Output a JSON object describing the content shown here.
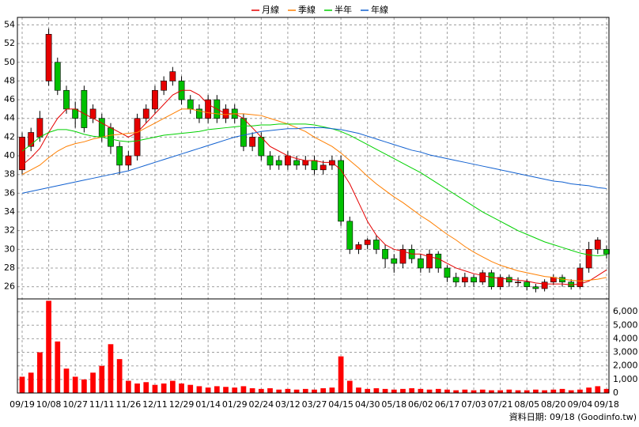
{
  "chart_data": [
    {
      "type": "candlestick",
      "categories": [
        "09/19",
        null,
        null,
        "10/08",
        null,
        null,
        "10/27",
        null,
        null,
        "11/11",
        null,
        null,
        "11/26",
        null,
        null,
        "12/11",
        null,
        null,
        "12/29",
        null,
        null,
        "01/14",
        null,
        null,
        "01/29",
        null,
        null,
        "02/24",
        null,
        null,
        "03/12",
        null,
        null,
        "03/27",
        null,
        null,
        "04/15",
        null,
        null,
        "04/30",
        null,
        null,
        "05/18",
        null,
        null,
        "06/02",
        null,
        null,
        "06/17",
        null,
        null,
        "07/03",
        null,
        null,
        "07/21",
        null,
        null,
        "08/05",
        null,
        null,
        "08/20",
        null,
        null,
        "09/04",
        null,
        null,
        "09/18"
      ],
      "open": [
        38.5,
        41,
        42,
        48,
        50,
        47,
        45,
        47,
        44,
        44,
        43,
        41,
        39,
        40,
        44,
        45,
        47,
        48,
        48,
        46,
        45,
        44,
        46,
        44,
        45,
        44,
        41,
        42,
        40,
        39.5,
        39,
        39.5,
        39,
        39.5,
        38.5,
        39,
        39.5,
        33,
        30,
        30.5,
        31,
        30,
        29,
        28.5,
        30,
        29,
        28,
        29.5,
        28,
        27,
        26.5,
        27,
        26.5,
        27.5,
        26,
        27,
        26.5,
        26.5,
        26,
        25.8,
        26.5,
        27,
        26.5,
        26,
        28,
        30,
        30
      ],
      "high": [
        42.5,
        43,
        44.8,
        53.6,
        50.5,
        47.5,
        45.8,
        47.5,
        45.5,
        44.5,
        43.5,
        41.5,
        40.5,
        44.5,
        45.5,
        47.5,
        48.5,
        49.5,
        48.5,
        46.5,
        45.5,
        46.5,
        46.5,
        45.5,
        45.5,
        44.5,
        42.5,
        42.5,
        40.5,
        40,
        40.5,
        40,
        40,
        40,
        39.5,
        40,
        40,
        33.5,
        30.8,
        31.2,
        31.5,
        30.5,
        29.5,
        30.5,
        30.5,
        29.5,
        30,
        29.8,
        28.3,
        27.5,
        27.5,
        27.3,
        27.8,
        27.8,
        27.3,
        27.3,
        27,
        26.8,
        26.3,
        26.8,
        27.3,
        27.3,
        26.8,
        28.5,
        30.8,
        31.3,
        30.4
      ],
      "low": [
        38,
        40.5,
        41.5,
        47.5,
        46.5,
        44.5,
        43,
        42.5,
        43.5,
        41.5,
        40.2,
        38,
        38.5,
        39.5,
        43.5,
        44.5,
        46.5,
        47.5,
        45.5,
        44.5,
        43.5,
        43.5,
        43.5,
        43.5,
        43.5,
        40.5,
        40.5,
        39.5,
        38.5,
        38.5,
        38.5,
        38.5,
        38.5,
        38,
        38,
        38.5,
        32.5,
        29.5,
        29.5,
        30,
        29.5,
        28,
        27.5,
        28,
        28.5,
        27.5,
        27.5,
        27.5,
        26.5,
        26,
        26,
        26,
        26.2,
        25.7,
        25.7,
        26,
        26,
        25.6,
        25.4,
        25.5,
        26.2,
        26,
        25.7,
        25.8,
        27.5,
        29.5,
        29
      ],
      "close": [
        42,
        42.5,
        44,
        53,
        47,
        45,
        44,
        43,
        45,
        42,
        41,
        39,
        40,
        44,
        45,
        47,
        48,
        49,
        46,
        45,
        44,
        46,
        44,
        45,
        44,
        41,
        42,
        40,
        39,
        39,
        40,
        39,
        39.5,
        38.5,
        39,
        39.5,
        33,
        30,
        30.5,
        31,
        30,
        29,
        28.5,
        30,
        29,
        28,
        29.5,
        28,
        27,
        26.5,
        27,
        26.5,
        27.5,
        26,
        27,
        26.5,
        26.5,
        26,
        25.8,
        26.5,
        27,
        26.5,
        26,
        28,
        30,
        31,
        29.5
      ],
      "up_color": "#e60000",
      "down_color": "#00c000",
      "series": [
        {
          "name": "月線",
          "color": "#e60000",
          "values": [
            39,
            39.8,
            40.8,
            42.5,
            44,
            45,
            45,
            44.5,
            44,
            43.5,
            43,
            42.5,
            42,
            42.5,
            43.5,
            44.5,
            45.5,
            46.5,
            47,
            47,
            46.5,
            45.5,
            45,
            44.5,
            44.5,
            44,
            43,
            42,
            41,
            40.5,
            40,
            39.7,
            39.5,
            39.5,
            39.3,
            39.3,
            38.5,
            37,
            35,
            33,
            31.5,
            30.5,
            30,
            29.8,
            29.5,
            29.5,
            29.2,
            29,
            28.5,
            28,
            27.7,
            27.4,
            27.2,
            27,
            26.9,
            26.8,
            26.7,
            26.6,
            26.4,
            26.3,
            26.3,
            26.3,
            26.2,
            26.3,
            26.6,
            27.2,
            27.8
          ]
        },
        {
          "name": "季線",
          "color": "#ff7f00",
          "values": [
            38,
            38.5,
            39,
            39.8,
            40.5,
            41,
            41.3,
            41.5,
            41.8,
            42,
            42.2,
            42.3,
            42.4,
            42.5,
            43,
            43.5,
            44,
            44.5,
            45,
            45,
            44.8,
            44.6,
            44.5,
            44.4,
            44.5,
            44.5,
            44.4,
            44.3,
            44,
            43.7,
            43.4,
            43,
            42.6,
            42,
            41.5,
            41,
            40.3,
            39.5,
            38.7,
            37.8,
            37,
            36.3,
            35.6,
            35,
            34.3,
            33.6,
            33,
            32.3,
            31.6,
            31,
            30.3,
            29.7,
            29.2,
            28.7,
            28.3,
            28,
            27.7,
            27.5,
            27.3,
            27.1,
            27,
            26.8,
            26.7,
            26.6,
            26.7,
            26.8,
            27
          ]
        },
        {
          "name": "半年",
          "color": "#00d000",
          "values": [
            40.5,
            41.2,
            42,
            42.5,
            42.8,
            42.8,
            42.6,
            42.3,
            42.1,
            42,
            41.8,
            41.6,
            41.5,
            41.6,
            41.8,
            42,
            42.2,
            42.3,
            42.4,
            42.5,
            42.6,
            42.8,
            42.9,
            43,
            43.1,
            43.2,
            43.2,
            43.3,
            43.3,
            43.4,
            43.4,
            43.4,
            43.4,
            43.3,
            43.1,
            42.9,
            42.6,
            42.2,
            41.7,
            41.2,
            40.7,
            40.2,
            39.7,
            39.2,
            38.7,
            38.2,
            37.6,
            37,
            36.4,
            35.8,
            35.2,
            34.6,
            34,
            33.5,
            33,
            32.5,
            32,
            31.6,
            31.2,
            30.8,
            30.5,
            30.2,
            29.9,
            29.6,
            29.4,
            29.3,
            29.4
          ]
        },
        {
          "name": "年線",
          "color": "#1060d0",
          "values": [
            36,
            36.2,
            36.4,
            36.6,
            36.8,
            37,
            37.2,
            37.4,
            37.6,
            37.8,
            38,
            38.2,
            38.4,
            38.7,
            39,
            39.3,
            39.6,
            39.9,
            40.2,
            40.5,
            40.8,
            41.1,
            41.4,
            41.7,
            42,
            42.2,
            42.4,
            42.6,
            42.7,
            42.8,
            42.9,
            42.9,
            43,
            43,
            43,
            42.9,
            42.8,
            42.6,
            42.4,
            42.1,
            41.8,
            41.5,
            41.2,
            40.9,
            40.6,
            40.4,
            40.1,
            39.9,
            39.7,
            39.5,
            39.3,
            39.1,
            38.9,
            38.7,
            38.5,
            38.3,
            38.1,
            37.9,
            37.7,
            37.5,
            37.3,
            37.2,
            37,
            36.9,
            36.8,
            36.6,
            36.5
          ]
        }
      ],
      "ylim": [
        24.7,
        54.8
      ],
      "yticks": [
        26,
        28,
        30,
        32,
        34,
        36,
        38,
        40,
        42,
        44,
        46,
        48,
        50,
        52,
        54
      ],
      "grid": true,
      "legend": "top"
    },
    {
      "type": "bar",
      "values": [
        1200,
        1500,
        3000,
        6800,
        3800,
        1800,
        1200,
        1000,
        1500,
        2000,
        3600,
        2500,
        900,
        700,
        800,
        600,
        700,
        900,
        700,
        600,
        500,
        400,
        500,
        450,
        400,
        500,
        350,
        300,
        350,
        250,
        300,
        250,
        300,
        250,
        350,
        400,
        2700,
        900,
        400,
        300,
        350,
        300,
        250,
        300,
        350,
        300,
        250,
        300,
        250,
        200,
        250,
        200,
        250,
        200,
        200,
        250,
        200,
        200,
        250,
        200,
        250,
        300,
        200,
        250,
        400,
        500,
        300
      ],
      "color": "#ff0000",
      "ylim": [
        0,
        6940
      ],
      "yticks": [
        0,
        {
          "value": 1000,
          "label": "1,000"
        },
        {
          "value": 2000,
          "label": "2,000"
        },
        {
          "value": 3000,
          "label": "3,000"
        },
        {
          "value": 4000,
          "label": "4,000"
        },
        {
          "value": 5000,
          "label": "5,000"
        },
        {
          "value": 6000,
          "label": "6,000"
        }
      ],
      "grid": true,
      "footer": "資料日期: 09/18 (Goodinfo.tw)"
    }
  ]
}
